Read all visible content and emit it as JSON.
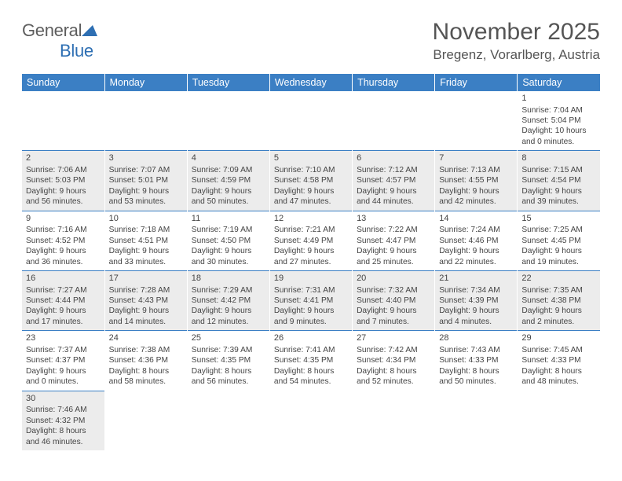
{
  "header": {
    "logo_text_a": "General",
    "logo_text_b": "Blue",
    "month_title": "November 2025",
    "location": "Bregenz, Vorarlberg, Austria"
  },
  "colors": {
    "header_bg": "#3b7fc4",
    "header_text": "#ffffff",
    "row_divider": "#3b7fc4",
    "shade_bg": "#ececec",
    "text": "#444444"
  },
  "day_headers": [
    "Sunday",
    "Monday",
    "Tuesday",
    "Wednesday",
    "Thursday",
    "Friday",
    "Saturday"
  ],
  "weeks": [
    {
      "shaded": false,
      "cells": [
        {
          "day": "",
          "lines": []
        },
        {
          "day": "",
          "lines": []
        },
        {
          "day": "",
          "lines": []
        },
        {
          "day": "",
          "lines": []
        },
        {
          "day": "",
          "lines": []
        },
        {
          "day": "",
          "lines": []
        },
        {
          "day": "1",
          "lines": [
            "Sunrise: 7:04 AM",
            "Sunset: 5:04 PM",
            "Daylight: 10 hours",
            "and 0 minutes."
          ]
        }
      ]
    },
    {
      "shaded": true,
      "cells": [
        {
          "day": "2",
          "lines": [
            "Sunrise: 7:06 AM",
            "Sunset: 5:03 PM",
            "Daylight: 9 hours",
            "and 56 minutes."
          ]
        },
        {
          "day": "3",
          "lines": [
            "Sunrise: 7:07 AM",
            "Sunset: 5:01 PM",
            "Daylight: 9 hours",
            "and 53 minutes."
          ]
        },
        {
          "day": "4",
          "lines": [
            "Sunrise: 7:09 AM",
            "Sunset: 4:59 PM",
            "Daylight: 9 hours",
            "and 50 minutes."
          ]
        },
        {
          "day": "5",
          "lines": [
            "Sunrise: 7:10 AM",
            "Sunset: 4:58 PM",
            "Daylight: 9 hours",
            "and 47 minutes."
          ]
        },
        {
          "day": "6",
          "lines": [
            "Sunrise: 7:12 AM",
            "Sunset: 4:57 PM",
            "Daylight: 9 hours",
            "and 44 minutes."
          ]
        },
        {
          "day": "7",
          "lines": [
            "Sunrise: 7:13 AM",
            "Sunset: 4:55 PM",
            "Daylight: 9 hours",
            "and 42 minutes."
          ]
        },
        {
          "day": "8",
          "lines": [
            "Sunrise: 7:15 AM",
            "Sunset: 4:54 PM",
            "Daylight: 9 hours",
            "and 39 minutes."
          ]
        }
      ]
    },
    {
      "shaded": false,
      "cells": [
        {
          "day": "9",
          "lines": [
            "Sunrise: 7:16 AM",
            "Sunset: 4:52 PM",
            "Daylight: 9 hours",
            "and 36 minutes."
          ]
        },
        {
          "day": "10",
          "lines": [
            "Sunrise: 7:18 AM",
            "Sunset: 4:51 PM",
            "Daylight: 9 hours",
            "and 33 minutes."
          ]
        },
        {
          "day": "11",
          "lines": [
            "Sunrise: 7:19 AM",
            "Sunset: 4:50 PM",
            "Daylight: 9 hours",
            "and 30 minutes."
          ]
        },
        {
          "day": "12",
          "lines": [
            "Sunrise: 7:21 AM",
            "Sunset: 4:49 PM",
            "Daylight: 9 hours",
            "and 27 minutes."
          ]
        },
        {
          "day": "13",
          "lines": [
            "Sunrise: 7:22 AM",
            "Sunset: 4:47 PM",
            "Daylight: 9 hours",
            "and 25 minutes."
          ]
        },
        {
          "day": "14",
          "lines": [
            "Sunrise: 7:24 AM",
            "Sunset: 4:46 PM",
            "Daylight: 9 hours",
            "and 22 minutes."
          ]
        },
        {
          "day": "15",
          "lines": [
            "Sunrise: 7:25 AM",
            "Sunset: 4:45 PM",
            "Daylight: 9 hours",
            "and 19 minutes."
          ]
        }
      ]
    },
    {
      "shaded": true,
      "cells": [
        {
          "day": "16",
          "lines": [
            "Sunrise: 7:27 AM",
            "Sunset: 4:44 PM",
            "Daylight: 9 hours",
            "and 17 minutes."
          ]
        },
        {
          "day": "17",
          "lines": [
            "Sunrise: 7:28 AM",
            "Sunset: 4:43 PM",
            "Daylight: 9 hours",
            "and 14 minutes."
          ]
        },
        {
          "day": "18",
          "lines": [
            "Sunrise: 7:29 AM",
            "Sunset: 4:42 PM",
            "Daylight: 9 hours",
            "and 12 minutes."
          ]
        },
        {
          "day": "19",
          "lines": [
            "Sunrise: 7:31 AM",
            "Sunset: 4:41 PM",
            "Daylight: 9 hours",
            "and 9 minutes."
          ]
        },
        {
          "day": "20",
          "lines": [
            "Sunrise: 7:32 AM",
            "Sunset: 4:40 PM",
            "Daylight: 9 hours",
            "and 7 minutes."
          ]
        },
        {
          "day": "21",
          "lines": [
            "Sunrise: 7:34 AM",
            "Sunset: 4:39 PM",
            "Daylight: 9 hours",
            "and 4 minutes."
          ]
        },
        {
          "day": "22",
          "lines": [
            "Sunrise: 7:35 AM",
            "Sunset: 4:38 PM",
            "Daylight: 9 hours",
            "and 2 minutes."
          ]
        }
      ]
    },
    {
      "shaded": false,
      "cells": [
        {
          "day": "23",
          "lines": [
            "Sunrise: 7:37 AM",
            "Sunset: 4:37 PM",
            "Daylight: 9 hours",
            "and 0 minutes."
          ]
        },
        {
          "day": "24",
          "lines": [
            "Sunrise: 7:38 AM",
            "Sunset: 4:36 PM",
            "Daylight: 8 hours",
            "and 58 minutes."
          ]
        },
        {
          "day": "25",
          "lines": [
            "Sunrise: 7:39 AM",
            "Sunset: 4:35 PM",
            "Daylight: 8 hours",
            "and 56 minutes."
          ]
        },
        {
          "day": "26",
          "lines": [
            "Sunrise: 7:41 AM",
            "Sunset: 4:35 PM",
            "Daylight: 8 hours",
            "and 54 minutes."
          ]
        },
        {
          "day": "27",
          "lines": [
            "Sunrise: 7:42 AM",
            "Sunset: 4:34 PM",
            "Daylight: 8 hours",
            "and 52 minutes."
          ]
        },
        {
          "day": "28",
          "lines": [
            "Sunrise: 7:43 AM",
            "Sunset: 4:33 PM",
            "Daylight: 8 hours",
            "and 50 minutes."
          ]
        },
        {
          "day": "29",
          "lines": [
            "Sunrise: 7:45 AM",
            "Sunset: 4:33 PM",
            "Daylight: 8 hours",
            "and 48 minutes."
          ]
        }
      ]
    },
    {
      "shaded": true,
      "cells": [
        {
          "day": "30",
          "lines": [
            "Sunrise: 7:46 AM",
            "Sunset: 4:32 PM",
            "Daylight: 8 hours",
            "and 46 minutes."
          ]
        },
        {
          "day": "",
          "lines": []
        },
        {
          "day": "",
          "lines": []
        },
        {
          "day": "",
          "lines": []
        },
        {
          "day": "",
          "lines": []
        },
        {
          "day": "",
          "lines": []
        },
        {
          "day": "",
          "lines": []
        }
      ]
    }
  ]
}
